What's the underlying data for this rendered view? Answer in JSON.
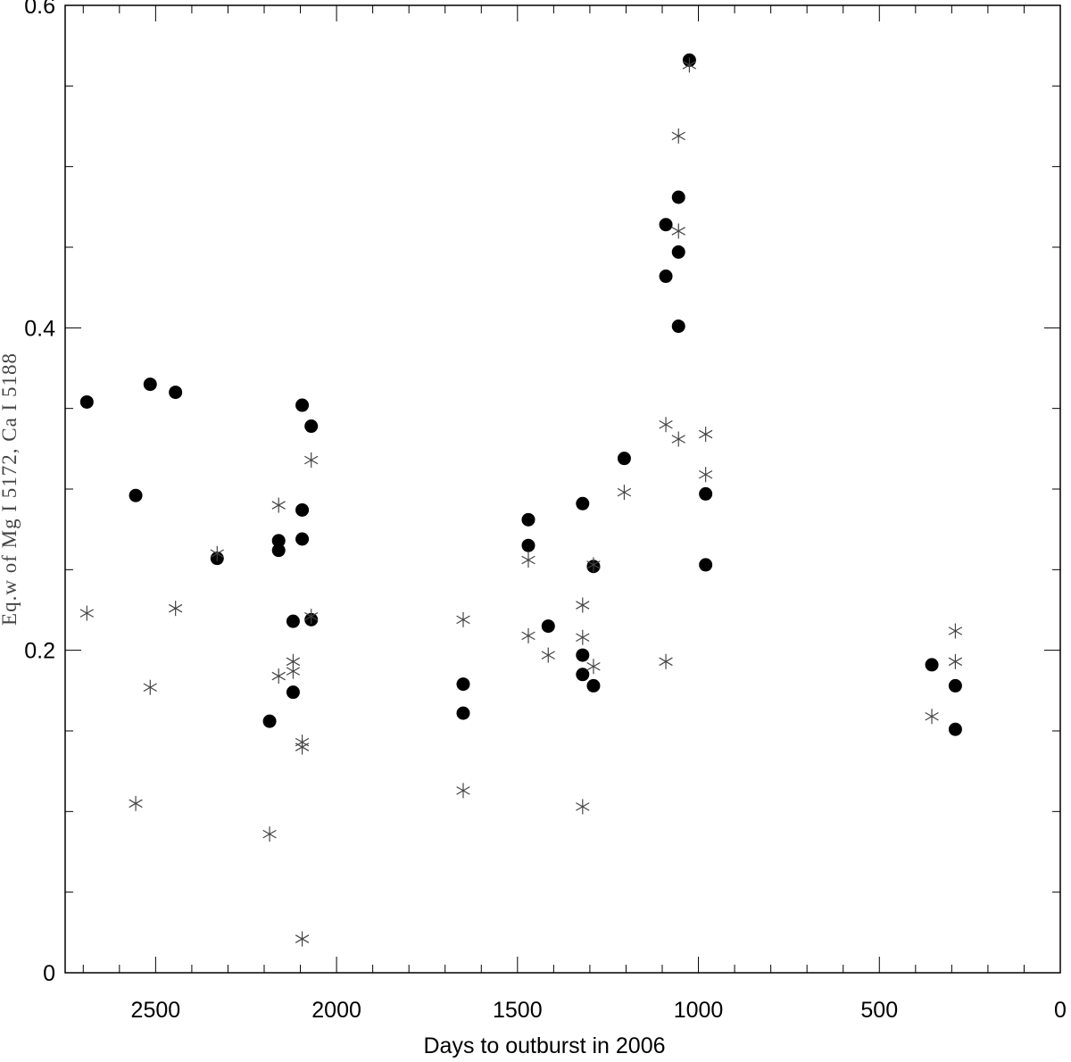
{
  "chart_data": {
    "type": "scatter",
    "title": "",
    "xlabel": "Days to outburst in 2006",
    "ylabel": "Eq.w of Mg I 5172, Ca I 5188",
    "xlim": [
      2750,
      0
    ],
    "ylim": [
      0,
      0.6
    ],
    "x_reversed": true,
    "x_ticks": [
      2500,
      2000,
      1500,
      1000,
      500,
      0
    ],
    "x_tick_labels": [
      "2500",
      "2000",
      "1500",
      "1000",
      "500",
      "0"
    ],
    "x_minor_step": 100,
    "y_ticks": [
      0,
      0.2,
      0.4,
      0.6
    ],
    "y_tick_labels": [
      "0",
      "0.2",
      "0.4",
      "0.6"
    ],
    "y_minor_step": 0.05,
    "grid": false,
    "legend": "none",
    "series": [
      {
        "marker": "filled-circle",
        "color": "#000000",
        "points": [
          [
            2690,
            0.354
          ],
          [
            2555,
            0.296
          ],
          [
            2515,
            0.365
          ],
          [
            2445,
            0.36
          ],
          [
            2330,
            0.257
          ],
          [
            2185,
            0.156
          ],
          [
            2160,
            0.262
          ],
          [
            2160,
            0.268
          ],
          [
            2120,
            0.218
          ],
          [
            2120,
            0.174
          ],
          [
            2095,
            0.352
          ],
          [
            2095,
            0.287
          ],
          [
            2095,
            0.269
          ],
          [
            2070,
            0.339
          ],
          [
            2070,
            0.219
          ],
          [
            1650,
            0.179
          ],
          [
            1650,
            0.161
          ],
          [
            1470,
            0.281
          ],
          [
            1470,
            0.265
          ],
          [
            1415,
            0.215
          ],
          [
            1320,
            0.291
          ],
          [
            1320,
            0.197
          ],
          [
            1320,
            0.185
          ],
          [
            1290,
            0.252
          ],
          [
            1290,
            0.178
          ],
          [
            1205,
            0.319
          ],
          [
            1090,
            0.464
          ],
          [
            1090,
            0.432
          ],
          [
            1055,
            0.481
          ],
          [
            1055,
            0.447
          ],
          [
            1055,
            0.401
          ],
          [
            1025,
            0.566
          ],
          [
            980,
            0.297
          ],
          [
            980,
            0.253
          ],
          [
            355,
            0.191
          ],
          [
            290,
            0.178
          ],
          [
            290,
            0.151
          ]
        ]
      },
      {
        "marker": "asterisk",
        "color": "#444444",
        "points": [
          [
            2690,
            0.223
          ],
          [
            2555,
            0.105
          ],
          [
            2515,
            0.177
          ],
          [
            2445,
            0.226
          ],
          [
            2330,
            0.26
          ],
          [
            2185,
            0.086
          ],
          [
            2160,
            0.29
          ],
          [
            2160,
            0.184
          ],
          [
            2120,
            0.193
          ],
          [
            2120,
            0.187
          ],
          [
            2095,
            0.143
          ],
          [
            2095,
            0.14
          ],
          [
            2095,
            0.021
          ],
          [
            2070,
            0.318
          ],
          [
            2070,
            0.221
          ],
          [
            1650,
            0.219
          ],
          [
            1650,
            0.113
          ],
          [
            1470,
            0.256
          ],
          [
            1470,
            0.209
          ],
          [
            1415,
            0.197
          ],
          [
            1320,
            0.228
          ],
          [
            1320,
            0.208
          ],
          [
            1320,
            0.103
          ],
          [
            1290,
            0.253
          ],
          [
            1290,
            0.19
          ],
          [
            1205,
            0.298
          ],
          [
            1090,
            0.34
          ],
          [
            1090,
            0.193
          ],
          [
            1055,
            0.331
          ],
          [
            1055,
            0.46
          ],
          [
            1055,
            0.519
          ],
          [
            1025,
            0.563
          ],
          [
            980,
            0.334
          ],
          [
            980,
            0.309
          ],
          [
            355,
            0.159
          ],
          [
            290,
            0.212
          ],
          [
            290,
            0.193
          ]
        ]
      }
    ]
  }
}
